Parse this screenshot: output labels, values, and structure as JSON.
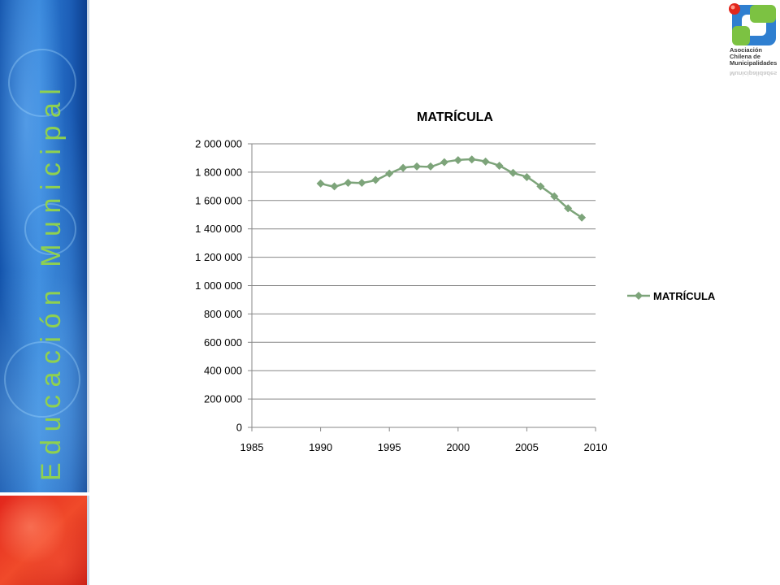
{
  "side_title": "Educación Municipal",
  "logo": {
    "lines": [
      "Asociación",
      "Chilena de",
      "Municipalidades"
    ],
    "reflection": "Municipalidades"
  },
  "colors": {
    "series": "#7da47a",
    "side_blue": "#1d5fb8",
    "side_red": "#e2261c",
    "side_title": "#8fd14f"
  },
  "chart_data": {
    "type": "scatter",
    "title": "MATRÍCULA",
    "xlabel": "",
    "ylabel": "",
    "xlim": [
      1985,
      2010
    ],
    "ylim": [
      0,
      2000000
    ],
    "xticks": [
      1985,
      1990,
      1995,
      2000,
      2005,
      2010
    ],
    "xtick_labels": [
      "1985",
      "1990",
      "1995",
      "2000",
      "2005",
      "2010"
    ],
    "yticks": [
      0,
      200000,
      400000,
      600000,
      800000,
      1000000,
      1200000,
      1400000,
      1600000,
      1800000,
      2000000
    ],
    "ytick_labels": [
      "0",
      "200 000",
      "400 000",
      "600 000",
      "800 000",
      "1 000 000",
      "1 200 000",
      "1 400 000",
      "1 600 000",
      "1 800 000",
      "2 000 000"
    ],
    "grid": true,
    "legend_position": "right",
    "series": [
      {
        "name": "MATRÍCULA",
        "marker": "diamond",
        "x": [
          1990,
          1991,
          1992,
          1993,
          1994,
          1995,
          1996,
          1997,
          1998,
          1999,
          2000,
          2001,
          2002,
          2003,
          2004,
          2005,
          2006,
          2007,
          2008,
          2009
        ],
        "y": [
          1720000,
          1700000,
          1725000,
          1725000,
          1745000,
          1790000,
          1830000,
          1840000,
          1840000,
          1870000,
          1885000,
          1890000,
          1875000,
          1845000,
          1795000,
          1765000,
          1700000,
          1630000,
          1545000,
          1480000
        ]
      }
    ]
  }
}
